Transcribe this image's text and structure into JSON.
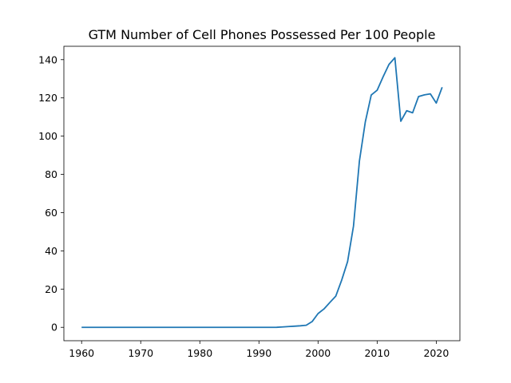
{
  "chart_data": {
    "type": "line",
    "title": "GTM Number of Cell Phones Possessed Per 100 People",
    "xlabel": "",
    "ylabel": "",
    "xlim": [
      1957,
      2024
    ],
    "ylim": [
      -7,
      147
    ],
    "x_ticks": [
      1960,
      1970,
      1980,
      1990,
      2000,
      2010,
      2020
    ],
    "y_ticks": [
      0,
      20,
      40,
      60,
      80,
      100,
      120,
      140
    ],
    "grid": false,
    "line_color": "#1f77b4",
    "series": [
      {
        "x": [
          1960,
          1961,
          1962,
          1963,
          1964,
          1965,
          1966,
          1967,
          1968,
          1969,
          1970,
          1971,
          1972,
          1973,
          1974,
          1975,
          1976,
          1977,
          1978,
          1979,
          1980,
          1981,
          1982,
          1983,
          1984,
          1985,
          1986,
          1987,
          1988,
          1989,
          1990,
          1991,
          1992,
          1993,
          1994,
          1995,
          1996,
          1997,
          1998,
          1999,
          2000,
          2001,
          2002,
          2003,
          2004,
          2005,
          2006,
          2007,
          2008,
          2009,
          2010,
          2011,
          2012,
          2013,
          2014,
          2015,
          2016,
          2017,
          2018,
          2019,
          2020,
          2021
        ],
        "values": [
          0,
          0,
          0,
          0,
          0,
          0,
          0,
          0,
          0,
          0,
          0,
          0,
          0,
          0,
          0,
          0,
          0,
          0,
          0,
          0,
          0,
          0,
          0,
          0,
          0,
          0,
          0,
          0,
          0,
          0,
          0,
          0,
          0,
          0.02,
          0.2,
          0.4,
          0.6,
          0.8,
          1.1,
          3.0,
          7.2,
          9.6,
          13.0,
          16.3,
          24.7,
          34.4,
          53.0,
          87.0,
          107.5,
          121.5,
          124.0,
          131.0,
          137.5,
          141.0,
          107.8,
          113.3,
          112.2,
          120.7,
          121.6,
          122.1,
          117.3,
          125.6
        ]
      }
    ]
  }
}
